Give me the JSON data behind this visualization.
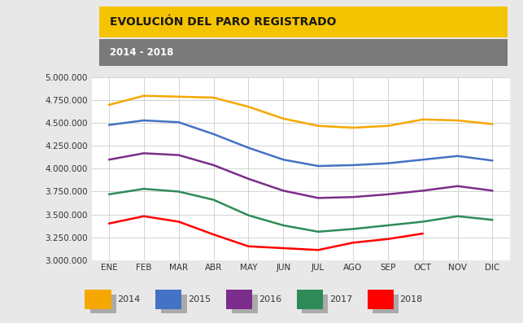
{
  "title": "EVOLUCIÓN DEL PARO REGISTRADO",
  "subtitle": "2014 - 2018",
  "title_bg": "#F5C400",
  "subtitle_bg": "#7A7A7A",
  "bg_color": "#E8E8E8",
  "plot_bg": "#FFFFFF",
  "grid_color": "#CCCCCC",
  "months": [
    "ENE",
    "FEB",
    "MAR",
    "ABR",
    "MAY",
    "JUN",
    "JUL",
    "AGO",
    "SEP",
    "OCT",
    "NOV",
    "DIC"
  ],
  "series": {
    "2014": {
      "values": [
        4700000,
        4800000,
        4790000,
        4780000,
        4680000,
        4550000,
        4470000,
        4450000,
        4470000,
        4540000,
        4530000,
        4490000
      ],
      "color": "#F5A800",
      "linewidth": 1.8
    },
    "2015": {
      "values": [
        4480000,
        4530000,
        4510000,
        4380000,
        4230000,
        4100000,
        4030000,
        4040000,
        4060000,
        4100000,
        4140000,
        4090000
      ],
      "color": "#4472C4",
      "linewidth": 1.8
    },
    "2016": {
      "values": [
        4100000,
        4170000,
        4150000,
        4040000,
        3890000,
        3760000,
        3680000,
        3690000,
        3720000,
        3760000,
        3810000,
        3760000
      ],
      "color": "#7B2D8B",
      "linewidth": 1.8
    },
    "2017": {
      "values": [
        3720000,
        3780000,
        3750000,
        3660000,
        3490000,
        3380000,
        3310000,
        3340000,
        3380000,
        3420000,
        3480000,
        3440000
      ],
      "color": "#2E8B57",
      "linewidth": 1.8
    },
    "2018": {
      "values": [
        3400000,
        3480000,
        3420000,
        3280000,
        3150000,
        3130000,
        3110000,
        3190000,
        3230000,
        3290000,
        null,
        null
      ],
      "color": "#FF0000",
      "linewidth": 1.8
    }
  },
  "ylim": [
    3000000,
    5000000
  ],
  "yticks": [
    3000000,
    3250000,
    3500000,
    3750000,
    4000000,
    4250000,
    4500000,
    4750000,
    5000000
  ],
  "legend_labels": [
    "2014",
    "2015",
    "2016",
    "2017",
    "2018"
  ],
  "legend_colors": [
    "#F5A800",
    "#4472C4",
    "#7B2D8B",
    "#2E8B57",
    "#FF0000"
  ]
}
